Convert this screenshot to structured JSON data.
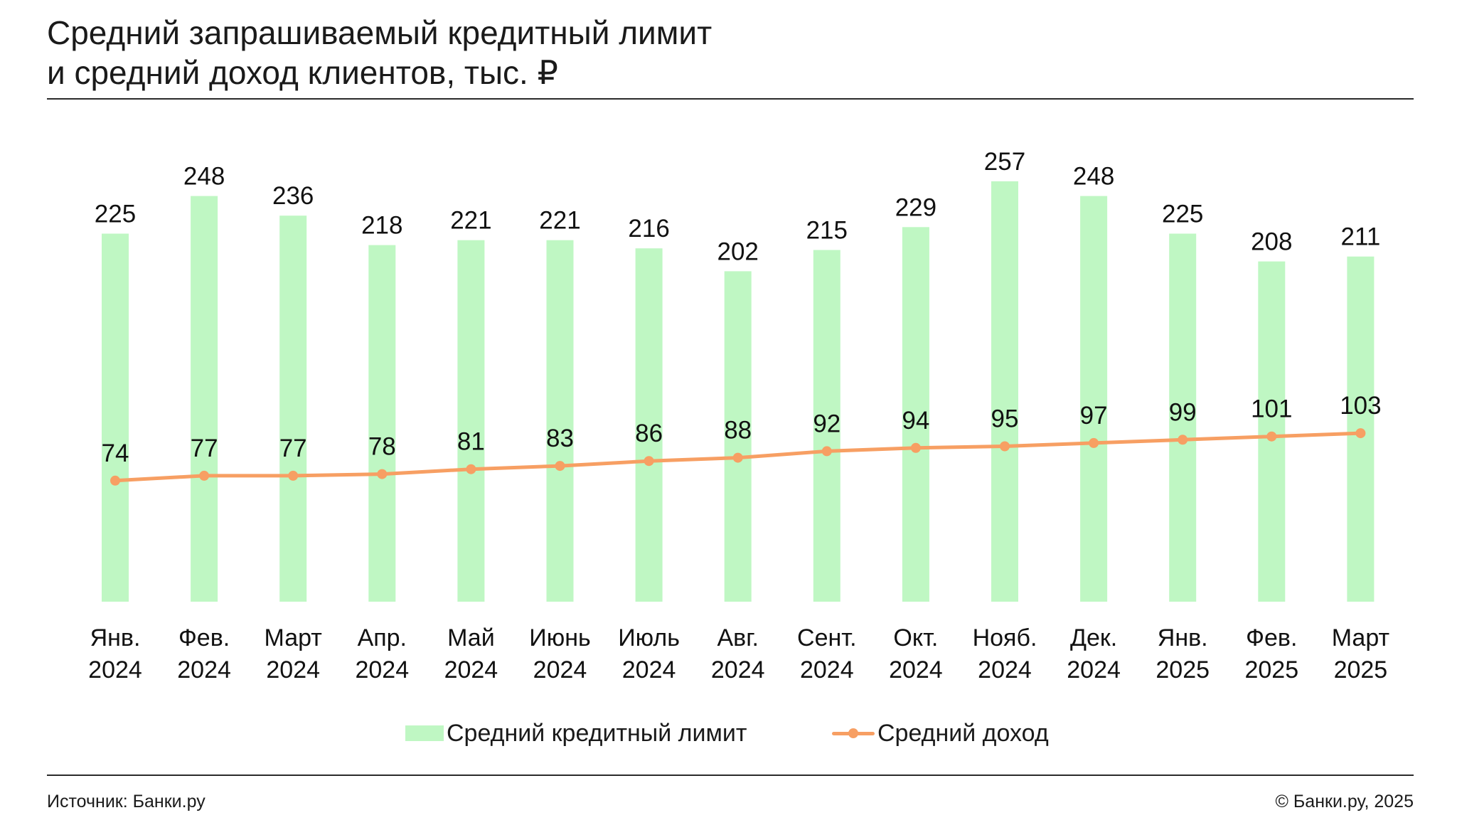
{
  "title_lines": [
    "Средний запрашиваемый кредитный лимит",
    "и средний доход клиентов, тыс. ₽"
  ],
  "colors": {
    "bar": "#bff7c3",
    "line": "#f79f63",
    "text": "#111111",
    "rule": "#2a2a2a"
  },
  "chart_data": {
    "type": "bar",
    "categories": [
      [
        "Янв.",
        "2024"
      ],
      [
        "Фев.",
        "2024"
      ],
      [
        "Март",
        "2024"
      ],
      [
        "Апр.",
        "2024"
      ],
      [
        "Май",
        "2024"
      ],
      [
        "Июнь",
        "2024"
      ],
      [
        "Июль",
        "2024"
      ],
      [
        "Авг.",
        "2024"
      ],
      [
        "Сент.",
        "2024"
      ],
      [
        "Окт.",
        "2024"
      ],
      [
        "Нояб.",
        "2024"
      ],
      [
        "Дек.",
        "2024"
      ],
      [
        "Янв.",
        "2025"
      ],
      [
        "Фев.",
        "2025"
      ],
      [
        "Март",
        "2025"
      ]
    ],
    "series": [
      {
        "name": "Средний кредитный лимит",
        "type": "bar",
        "values": [
          225,
          248,
          236,
          218,
          221,
          221,
          216,
          202,
          215,
          229,
          257,
          248,
          225,
          208,
          211
        ]
      },
      {
        "name": "Средний доход",
        "type": "line",
        "values": [
          74,
          77,
          77,
          78,
          81,
          83,
          86,
          88,
          92,
          94,
          95,
          97,
          99,
          101,
          103
        ]
      }
    ],
    "ylim": [
      0,
      270
    ],
    "legend_position": "bottom-center",
    "grid": false
  },
  "legend": {
    "bar_label": "Средний кредитный лимит",
    "line_label": "Средний доход"
  },
  "footer": {
    "source": "Источник: Банки.ру",
    "copyright": "© Банки.ру, 2025"
  }
}
